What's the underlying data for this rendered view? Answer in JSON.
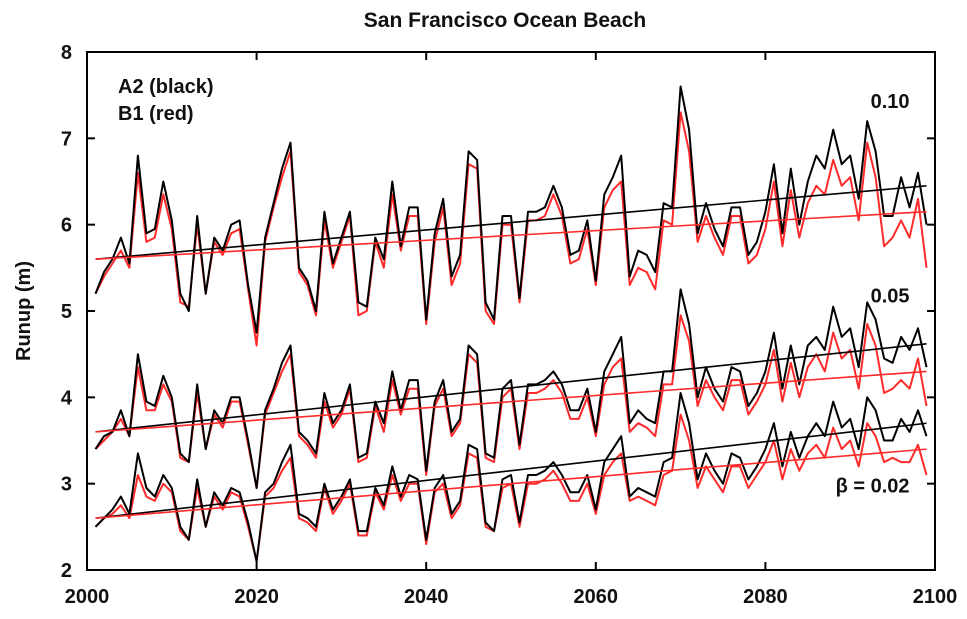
{
  "chart_data": {
    "type": "line",
    "title": "San Francisco Ocean Beach",
    "xlabel": "",
    "ylabel": "Runup (m)",
    "xlim": [
      2000,
      2100
    ],
    "ylim": [
      2,
      8
    ],
    "xticks": [
      2000,
      2020,
      2040,
      2060,
      2080,
      2100
    ],
    "yticks": [
      2,
      3,
      4,
      5,
      6,
      7,
      8
    ],
    "grid": false,
    "legend": {
      "placement": "top-left",
      "entries": [
        "A2 (black)",
        "B1 (red)"
      ]
    },
    "annotations": [
      {
        "text": "0.10",
        "x": 2097,
        "y": 7.35
      },
      {
        "text": "0.05",
        "x": 2097,
        "y": 5.1
      },
      {
        "text": "β = 0.02",
        "x": 2097,
        "y": 2.9
      }
    ],
    "colors": {
      "A2": "#000000",
      "B1": "#ff2a2a"
    },
    "x": [
      2001,
      2002,
      2003,
      2004,
      2005,
      2006,
      2007,
      2008,
      2009,
      2010,
      2011,
      2012,
      2013,
      2014,
      2015,
      2016,
      2017,
      2018,
      2019,
      2020,
      2021,
      2022,
      2023,
      2024,
      2025,
      2026,
      2027,
      2028,
      2029,
      2030,
      2031,
      2032,
      2033,
      2034,
      2035,
      2036,
      2037,
      2038,
      2039,
      2040,
      2041,
      2042,
      2043,
      2044,
      2045,
      2046,
      2047,
      2048,
      2049,
      2050,
      2051,
      2052,
      2053,
      2054,
      2055,
      2056,
      2057,
      2058,
      2059,
      2060,
      2061,
      2062,
      2063,
      2064,
      2065,
      2066,
      2067,
      2068,
      2069,
      2070,
      2071,
      2072,
      2073,
      2074,
      2075,
      2076,
      2077,
      2078,
      2079,
      2080,
      2081,
      2082,
      2083,
      2084,
      2085,
      2086,
      2087,
      2088,
      2089,
      2090,
      2091,
      2092,
      2093,
      2094,
      2095,
      2096,
      2097,
      2098,
      2099
    ],
    "series": [
      {
        "group": "0.10",
        "name": "A2",
        "values": [
          5.2,
          5.45,
          5.6,
          5.85,
          5.55,
          6.8,
          5.9,
          5.95,
          6.5,
          6.05,
          5.2,
          5.0,
          6.1,
          5.2,
          5.85,
          5.7,
          6.0,
          6.05,
          5.3,
          4.75,
          5.85,
          6.25,
          6.65,
          6.95,
          5.5,
          5.35,
          5.0,
          6.15,
          5.55,
          5.85,
          6.15,
          5.1,
          5.05,
          5.85,
          5.6,
          6.5,
          5.75,
          6.2,
          6.2,
          4.9,
          5.9,
          6.3,
          5.4,
          5.65,
          6.85,
          6.75,
          5.1,
          4.9,
          6.1,
          6.1,
          5.15,
          6.15,
          6.15,
          6.2,
          6.45,
          6.2,
          5.65,
          5.7,
          6.05,
          5.35,
          6.35,
          6.55,
          6.8,
          5.4,
          5.7,
          5.65,
          5.45,
          6.25,
          6.2,
          7.6,
          7.1,
          5.9,
          6.25,
          5.95,
          5.75,
          6.2,
          6.2,
          5.65,
          5.8,
          6.15,
          6.7,
          5.9,
          6.65,
          6.0,
          6.5,
          6.8,
          6.65,
          7.1,
          6.7,
          6.8,
          6.3,
          7.2,
          6.85,
          6.1,
          6.1,
          6.55,
          6.2,
          6.6,
          6.0
        ]
      },
      {
        "group": "0.10",
        "name": "B1",
        "values": [
          5.2,
          5.4,
          5.55,
          5.7,
          5.5,
          6.6,
          5.8,
          5.85,
          6.35,
          5.95,
          5.1,
          5.05,
          6.0,
          5.2,
          5.8,
          5.65,
          5.9,
          5.95,
          5.25,
          4.6,
          5.8,
          6.2,
          6.55,
          6.85,
          5.45,
          5.3,
          4.95,
          6.05,
          5.5,
          5.8,
          6.1,
          4.95,
          5.0,
          5.8,
          5.5,
          6.35,
          5.7,
          6.1,
          6.1,
          4.85,
          5.8,
          6.2,
          5.3,
          5.55,
          6.7,
          6.65,
          5.0,
          4.85,
          6.0,
          6.0,
          5.1,
          6.05,
          6.05,
          6.1,
          6.35,
          6.1,
          5.55,
          5.6,
          5.95,
          5.3,
          6.2,
          6.4,
          6.5,
          5.3,
          5.5,
          5.45,
          5.25,
          6.05,
          6.0,
          7.3,
          6.85,
          5.8,
          6.1,
          5.85,
          5.65,
          6.1,
          6.1,
          5.55,
          5.65,
          5.95,
          6.5,
          5.75,
          6.4,
          5.85,
          6.25,
          6.45,
          6.35,
          6.75,
          6.45,
          6.55,
          6.05,
          6.95,
          6.55,
          5.75,
          5.85,
          6.05,
          5.85,
          6.3,
          5.5
        ]
      },
      {
        "group": "0.05",
        "name": "A2",
        "values": [
          3.4,
          3.55,
          3.6,
          3.85,
          3.55,
          4.5,
          3.95,
          3.9,
          4.25,
          4.0,
          3.35,
          3.25,
          4.15,
          3.4,
          3.85,
          3.7,
          4.0,
          4.0,
          3.5,
          2.95,
          3.85,
          4.1,
          4.4,
          4.6,
          3.6,
          3.5,
          3.35,
          4.05,
          3.7,
          3.85,
          4.15,
          3.3,
          3.35,
          3.95,
          3.7,
          4.3,
          3.85,
          4.2,
          4.2,
          3.15,
          3.95,
          4.2,
          3.6,
          3.75,
          4.6,
          4.5,
          3.35,
          3.3,
          4.1,
          4.2,
          3.45,
          4.15,
          4.15,
          4.2,
          4.3,
          4.15,
          3.85,
          3.85,
          4.1,
          3.6,
          4.3,
          4.5,
          4.7,
          3.7,
          3.85,
          3.75,
          3.7,
          4.3,
          4.3,
          5.25,
          4.85,
          4.0,
          4.35,
          4.1,
          3.95,
          4.35,
          4.3,
          3.9,
          4.05,
          4.3,
          4.75,
          4.1,
          4.6,
          4.15,
          4.6,
          4.7,
          4.55,
          5.05,
          4.7,
          4.8,
          4.35,
          5.1,
          4.9,
          4.45,
          4.4,
          4.7,
          4.55,
          4.8,
          4.35
        ]
      },
      {
        "group": "0.05",
        "name": "B1",
        "values": [
          3.4,
          3.5,
          3.6,
          3.75,
          3.55,
          4.35,
          3.85,
          3.85,
          4.15,
          3.95,
          3.3,
          3.25,
          4.05,
          3.4,
          3.8,
          3.65,
          3.95,
          3.95,
          3.45,
          2.95,
          3.8,
          4.05,
          4.3,
          4.5,
          3.55,
          3.45,
          3.3,
          3.95,
          3.65,
          3.8,
          4.1,
          3.25,
          3.3,
          3.9,
          3.6,
          4.2,
          3.8,
          4.1,
          4.1,
          3.1,
          3.9,
          4.1,
          3.55,
          3.7,
          4.5,
          4.4,
          3.3,
          3.25,
          4.0,
          4.1,
          3.4,
          4.05,
          4.05,
          4.1,
          4.2,
          4.05,
          3.75,
          3.75,
          4.0,
          3.55,
          4.15,
          4.35,
          4.45,
          3.6,
          3.7,
          3.65,
          3.55,
          4.15,
          4.15,
          4.95,
          4.65,
          3.9,
          4.2,
          4.0,
          3.85,
          4.2,
          4.2,
          3.8,
          3.95,
          4.15,
          4.55,
          3.95,
          4.4,
          4.0,
          4.35,
          4.5,
          4.3,
          4.75,
          4.45,
          4.55,
          4.1,
          4.85,
          4.6,
          4.05,
          4.1,
          4.2,
          4.1,
          4.45,
          3.9
        ]
      },
      {
        "group": "β = 0.02",
        "name": "A2",
        "values": [
          2.5,
          2.6,
          2.7,
          2.85,
          2.65,
          3.35,
          2.95,
          2.85,
          3.1,
          2.95,
          2.5,
          2.35,
          3.05,
          2.5,
          2.9,
          2.75,
          2.95,
          2.9,
          2.55,
          2.1,
          2.9,
          3.0,
          3.25,
          3.45,
          2.65,
          2.6,
          2.5,
          3.0,
          2.7,
          2.85,
          3.05,
          2.45,
          2.45,
          2.95,
          2.75,
          3.2,
          2.85,
          3.1,
          3.05,
          2.35,
          2.95,
          3.1,
          2.65,
          2.8,
          3.45,
          3.4,
          2.55,
          2.45,
          3.05,
          3.1,
          2.55,
          3.1,
          3.1,
          3.15,
          3.25,
          3.1,
          2.9,
          2.9,
          3.1,
          2.7,
          3.25,
          3.4,
          3.55,
          2.85,
          2.95,
          2.9,
          2.85,
          3.25,
          3.3,
          4.05,
          3.7,
          3.05,
          3.35,
          3.15,
          3.0,
          3.35,
          3.3,
          3.05,
          3.2,
          3.4,
          3.7,
          3.2,
          3.6,
          3.3,
          3.55,
          3.7,
          3.55,
          3.95,
          3.65,
          3.75,
          3.4,
          4.0,
          3.85,
          3.5,
          3.5,
          3.75,
          3.6,
          3.85,
          3.55
        ]
      },
      {
        "group": "β = 0.02",
        "name": "B1",
        "values": [
          2.5,
          2.6,
          2.65,
          2.75,
          2.6,
          3.1,
          2.85,
          2.8,
          3.0,
          2.9,
          2.45,
          2.35,
          2.95,
          2.5,
          2.85,
          2.7,
          2.9,
          2.85,
          2.5,
          2.1,
          2.85,
          2.95,
          3.15,
          3.3,
          2.6,
          2.55,
          2.45,
          2.95,
          2.65,
          2.8,
          3.0,
          2.4,
          2.4,
          2.9,
          2.7,
          3.1,
          2.8,
          3.0,
          3.0,
          2.3,
          2.9,
          3.0,
          2.6,
          2.75,
          3.35,
          3.3,
          2.5,
          2.45,
          2.95,
          3.0,
          2.5,
          3.0,
          3.0,
          3.05,
          3.15,
          3.0,
          2.8,
          2.8,
          3.0,
          2.65,
          3.1,
          3.25,
          3.35,
          2.8,
          2.85,
          2.8,
          2.75,
          3.1,
          3.15,
          3.8,
          3.5,
          2.95,
          3.2,
          3.05,
          2.9,
          3.2,
          3.2,
          2.95,
          3.1,
          3.25,
          3.5,
          3.05,
          3.4,
          3.15,
          3.35,
          3.45,
          3.3,
          3.65,
          3.4,
          3.5,
          3.2,
          3.7,
          3.55,
          3.25,
          3.3,
          3.25,
          3.25,
          3.45,
          3.1
        ]
      }
    ],
    "trend_lines": [
      {
        "group": "0.10",
        "name": "A2",
        "x": [
          2001,
          2099
        ],
        "y": [
          5.6,
          6.45
        ]
      },
      {
        "group": "0.10",
        "name": "B1",
        "x": [
          2001,
          2099
        ],
        "y": [
          5.6,
          6.15
        ]
      },
      {
        "group": "0.05",
        "name": "A2",
        "x": [
          2001,
          2099
        ],
        "y": [
          3.6,
          4.62
        ]
      },
      {
        "group": "0.05",
        "name": "B1",
        "x": [
          2001,
          2099
        ],
        "y": [
          3.6,
          4.3
        ]
      },
      {
        "group": "β = 0.02",
        "name": "A2",
        "x": [
          2001,
          2099
        ],
        "y": [
          2.6,
          3.7
        ]
      },
      {
        "group": "β = 0.02",
        "name": "B1",
        "x": [
          2001,
          2099
        ],
        "y": [
          2.6,
          3.4
        ]
      }
    ]
  }
}
